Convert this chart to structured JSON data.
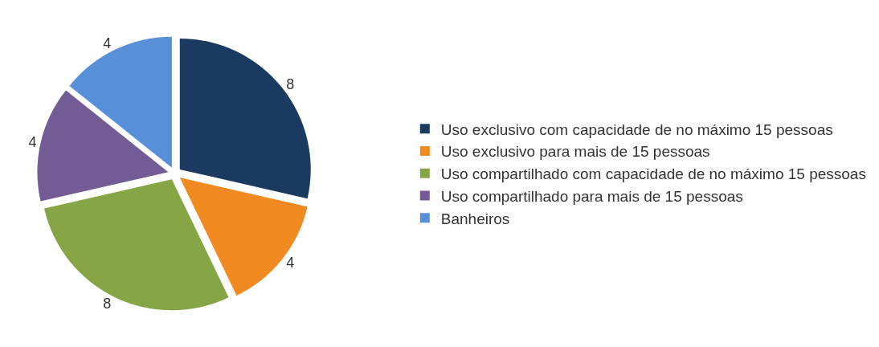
{
  "chart_data": {
    "type": "pie",
    "categories": [
      "Uso exclusivo com capacidade de no máximo 15 pessoas",
      "Uso exclusivo para mais de 15 pessoas",
      "Uso compartilhado com capacidade de no máximo 15 pessoas",
      "Uso compartilhado para mais de 15 pessoas",
      "Banheiros"
    ],
    "values": [
      8,
      4,
      8,
      4,
      4
    ],
    "colors": [
      "#1b3a5f",
      "#f28a22",
      "#86a545",
      "#735b96",
      "#5790d9"
    ],
    "data_labels": true,
    "legend": "right"
  }
}
